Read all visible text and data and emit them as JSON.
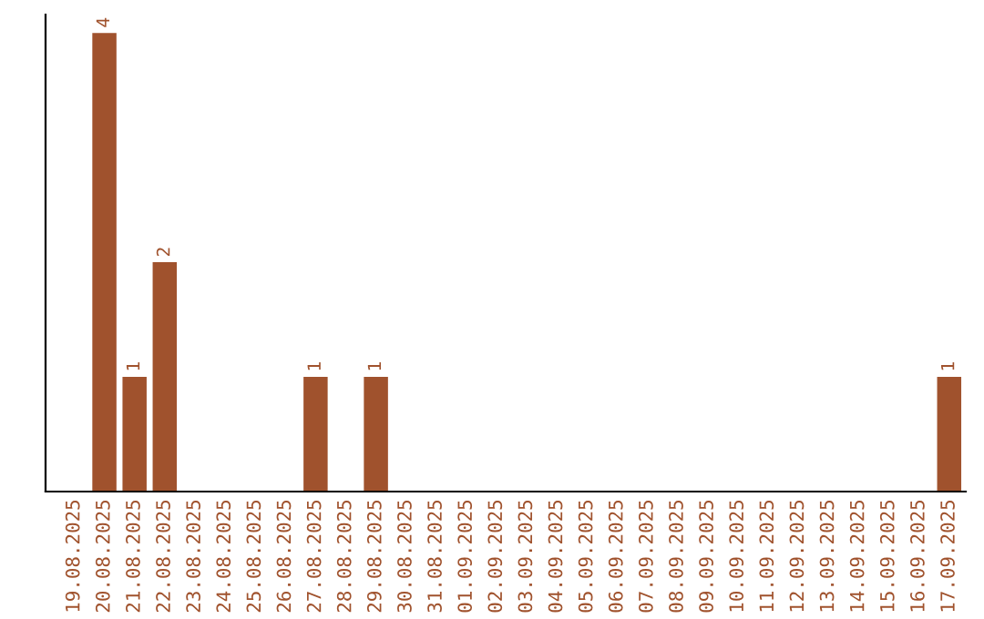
{
  "chart_data": {
    "type": "bar",
    "categories": [
      "19.08.2025",
      "20.08.2025",
      "21.08.2025",
      "22.08.2025",
      "23.08.2025",
      "24.08.2025",
      "25.08.2025",
      "26.08.2025",
      "27.08.2025",
      "28.08.2025",
      "29.08.2025",
      "30.08.2025",
      "31.08.2025",
      "01.09.2025",
      "02.09.2025",
      "03.09.2025",
      "04.09.2025",
      "05.09.2025",
      "06.09.2025",
      "07.09.2025",
      "08.09.2025",
      "09.09.2025",
      "10.09.2025",
      "11.09.2025",
      "12.09.2025",
      "13.09.2025",
      "14.09.2025",
      "15.09.2025",
      "16.09.2025",
      "17.09.2025"
    ],
    "values": [
      0,
      4,
      1,
      2,
      0,
      0,
      0,
      0,
      1,
      0,
      1,
      0,
      0,
      0,
      0,
      0,
      0,
      0,
      0,
      0,
      0,
      0,
      0,
      0,
      0,
      0,
      0,
      0,
      0,
      1
    ],
    "color": "#a0522d",
    "value_labels": [
      null,
      "4",
      "1",
      "2",
      null,
      null,
      null,
      null,
      "1",
      null,
      "1",
      null,
      null,
      null,
      null,
      null,
      null,
      null,
      null,
      null,
      null,
      null,
      null,
      null,
      null,
      null,
      null,
      null,
      null,
      "1"
    ],
    "grid": false
  }
}
